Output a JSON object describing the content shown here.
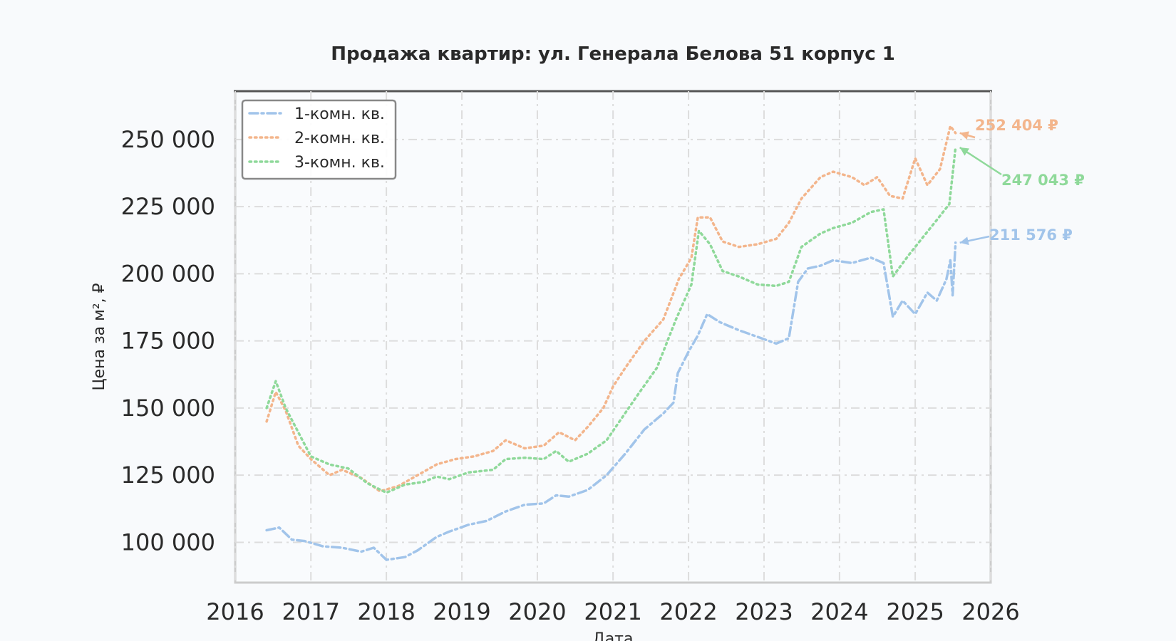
{
  "chart_data": {
    "type": "line",
    "title": "Продажа квартир: ул. Генерала Белова 51 корпус 1",
    "xlabel": "Дата",
    "ylabel": "Цена за м², ₽",
    "xlim": [
      "2016-01-01",
      "2026-01-01"
    ],
    "ylim": [
      85000,
      268000
    ],
    "x_ticks": [
      "2016",
      "2017",
      "2018",
      "2019",
      "2020",
      "2021",
      "2022",
      "2023",
      "2024",
      "2025",
      "2026"
    ],
    "y_ticks": [
      {
        "value": 100000,
        "label": "100 000"
      },
      {
        "value": 125000,
        "label": "125 000"
      },
      {
        "value": 150000,
        "label": "150 000"
      },
      {
        "value": 175000,
        "label": "175 000"
      },
      {
        "value": 200000,
        "label": "200 000"
      },
      {
        "value": 225000,
        "label": "225 000"
      },
      {
        "value": 250000,
        "label": "250 000"
      }
    ],
    "grid": true,
    "legend_position": "top-left",
    "series": [
      {
        "name": "1-комн. кв.",
        "color": "#a1c4ea",
        "line_style": "dashdot",
        "end_label": "211 576 ₽",
        "end_value": 211576,
        "points": [
          [
            "2016-06-01",
            104500
          ],
          [
            "2016-08-01",
            105500
          ],
          [
            "2016-10-01",
            101000
          ],
          [
            "2016-12-01",
            100500
          ],
          [
            "2017-03-01",
            98500
          ],
          [
            "2017-06-01",
            98000
          ],
          [
            "2017-09-01",
            96500
          ],
          [
            "2017-11-01",
            98000
          ],
          [
            "2018-01-01",
            93500
          ],
          [
            "2018-04-01",
            94500
          ],
          [
            "2018-06-01",
            97000
          ],
          [
            "2018-09-01",
            102000
          ],
          [
            "2018-11-01",
            104000
          ],
          [
            "2019-02-01",
            106500
          ],
          [
            "2019-05-01",
            108000
          ],
          [
            "2019-08-01",
            111500
          ],
          [
            "2019-11-01",
            114000
          ],
          [
            "2020-02-01",
            114500
          ],
          [
            "2020-04-01",
            117500
          ],
          [
            "2020-06-01",
            117000
          ],
          [
            "2020-09-01",
            119500
          ],
          [
            "2020-12-01",
            125000
          ],
          [
            "2021-03-01",
            133000
          ],
          [
            "2021-06-01",
            142000
          ],
          [
            "2021-09-01",
            148000
          ],
          [
            "2021-10-20",
            152000
          ],
          [
            "2021-11-10",
            163000
          ],
          [
            "2022-01-01",
            171000
          ],
          [
            "2022-02-15",
            177000
          ],
          [
            "2022-04-01",
            185000
          ],
          [
            "2022-06-01",
            182000
          ],
          [
            "2022-09-01",
            179000
          ],
          [
            "2022-12-01",
            176500
          ],
          [
            "2023-03-01",
            174000
          ],
          [
            "2023-05-01",
            176000
          ],
          [
            "2023-06-15",
            197000
          ],
          [
            "2023-08-01",
            202000
          ],
          [
            "2023-10-01",
            203000
          ],
          [
            "2023-12-01",
            205000
          ],
          [
            "2024-03-01",
            204000
          ],
          [
            "2024-06-01",
            206000
          ],
          [
            "2024-08-01",
            204000
          ],
          [
            "2024-09-15",
            184000
          ],
          [
            "2024-11-01",
            190000
          ],
          [
            "2025-01-01",
            185000
          ],
          [
            "2025-03-01",
            193000
          ],
          [
            "2025-04-15",
            190000
          ],
          [
            "2025-06-01",
            198000
          ],
          [
            "2025-06-20",
            205000
          ],
          [
            "2025-07-01",
            192000
          ],
          [
            "2025-07-15",
            211576
          ]
        ]
      },
      {
        "name": "2-комн. кв.",
        "color": "#f3b58c",
        "line_style": "dotted",
        "end_label": "252 404 ₽",
        "end_value": 252404,
        "points": [
          [
            "2016-06-01",
            145000
          ],
          [
            "2016-07-15",
            156000
          ],
          [
            "2016-09-01",
            149000
          ],
          [
            "2016-11-01",
            136000
          ],
          [
            "2017-01-01",
            131000
          ],
          [
            "2017-04-01",
            125000
          ],
          [
            "2017-06-01",
            127000
          ],
          [
            "2017-09-01",
            124000
          ],
          [
            "2017-12-01",
            119000
          ],
          [
            "2018-03-01",
            121000
          ],
          [
            "2018-06-01",
            125000
          ],
          [
            "2018-09-01",
            129000
          ],
          [
            "2018-12-01",
            131000
          ],
          [
            "2019-03-01",
            132000
          ],
          [
            "2019-06-01",
            134000
          ],
          [
            "2019-08-01",
            138000
          ],
          [
            "2019-11-01",
            135000
          ],
          [
            "2020-02-01",
            136000
          ],
          [
            "2020-04-15",
            141000
          ],
          [
            "2020-07-01",
            138000
          ],
          [
            "2020-09-01",
            143000
          ],
          [
            "2020-11-15",
            150000
          ],
          [
            "2021-01-01",
            158000
          ],
          [
            "2021-03-01",
            165000
          ],
          [
            "2021-06-01",
            175000
          ],
          [
            "2021-09-01",
            183000
          ],
          [
            "2021-11-15",
            198000
          ],
          [
            "2022-01-15",
            206000
          ],
          [
            "2022-02-15",
            221000
          ],
          [
            "2022-04-15",
            221000
          ],
          [
            "2022-06-15",
            212000
          ],
          [
            "2022-09-01",
            210000
          ],
          [
            "2022-12-01",
            211000
          ],
          [
            "2023-03-01",
            213000
          ],
          [
            "2023-05-01",
            219000
          ],
          [
            "2023-07-01",
            228000
          ],
          [
            "2023-10-01",
            236000
          ],
          [
            "2023-12-01",
            238000
          ],
          [
            "2024-03-01",
            236000
          ],
          [
            "2024-05-01",
            233000
          ],
          [
            "2024-07-01",
            236000
          ],
          [
            "2024-09-01",
            229000
          ],
          [
            "2024-11-01",
            228000
          ],
          [
            "2025-01-01",
            243000
          ],
          [
            "2025-03-01",
            233000
          ],
          [
            "2025-05-01",
            239000
          ],
          [
            "2025-06-20",
            255000
          ],
          [
            "2025-07-15",
            252404
          ]
        ]
      },
      {
        "name": "3-комн. кв.",
        "color": "#8fd99a",
        "line_style": "dotted",
        "end_label": "247 043 ₽",
        "end_value": 247043,
        "points": [
          [
            "2016-06-01",
            150000
          ],
          [
            "2016-07-15",
            160000
          ],
          [
            "2016-09-01",
            150000
          ],
          [
            "2016-11-01",
            141000
          ],
          [
            "2017-01-01",
            132000
          ],
          [
            "2017-04-01",
            129000
          ],
          [
            "2017-07-01",
            127500
          ],
          [
            "2017-10-01",
            122000
          ],
          [
            "2018-01-01",
            118500
          ],
          [
            "2018-04-01",
            121500
          ],
          [
            "2018-07-01",
            122500
          ],
          [
            "2018-09-01",
            124500
          ],
          [
            "2018-11-01",
            123500
          ],
          [
            "2019-02-01",
            126000
          ],
          [
            "2019-04-01",
            126500
          ],
          [
            "2019-06-01",
            127000
          ],
          [
            "2019-08-01",
            131000
          ],
          [
            "2019-11-01",
            131500
          ],
          [
            "2020-02-01",
            131000
          ],
          [
            "2020-04-01",
            134000
          ],
          [
            "2020-06-01",
            130000
          ],
          [
            "2020-09-01",
            133000
          ],
          [
            "2020-12-01",
            138000
          ],
          [
            "2021-02-01",
            145000
          ],
          [
            "2021-05-01",
            155000
          ],
          [
            "2021-08-01",
            165000
          ],
          [
            "2021-11-01",
            183000
          ],
          [
            "2022-01-15",
            196000
          ],
          [
            "2022-02-20",
            216000
          ],
          [
            "2022-04-15",
            211000
          ],
          [
            "2022-06-15",
            201000
          ],
          [
            "2022-09-01",
            199000
          ],
          [
            "2022-12-01",
            196000
          ],
          [
            "2023-03-01",
            195500
          ],
          [
            "2023-05-01",
            197000
          ],
          [
            "2023-07-01",
            210000
          ],
          [
            "2023-10-01",
            215000
          ],
          [
            "2023-12-01",
            217000
          ],
          [
            "2024-03-01",
            219000
          ],
          [
            "2024-06-01",
            223000
          ],
          [
            "2024-08-01",
            224000
          ],
          [
            "2024-09-15",
            199000
          ],
          [
            "2024-12-01",
            207000
          ],
          [
            "2025-02-01",
            213000
          ],
          [
            "2025-04-15",
            220000
          ],
          [
            "2025-06-15",
            226000
          ],
          [
            "2025-07-15",
            247043
          ]
        ]
      }
    ]
  }
}
